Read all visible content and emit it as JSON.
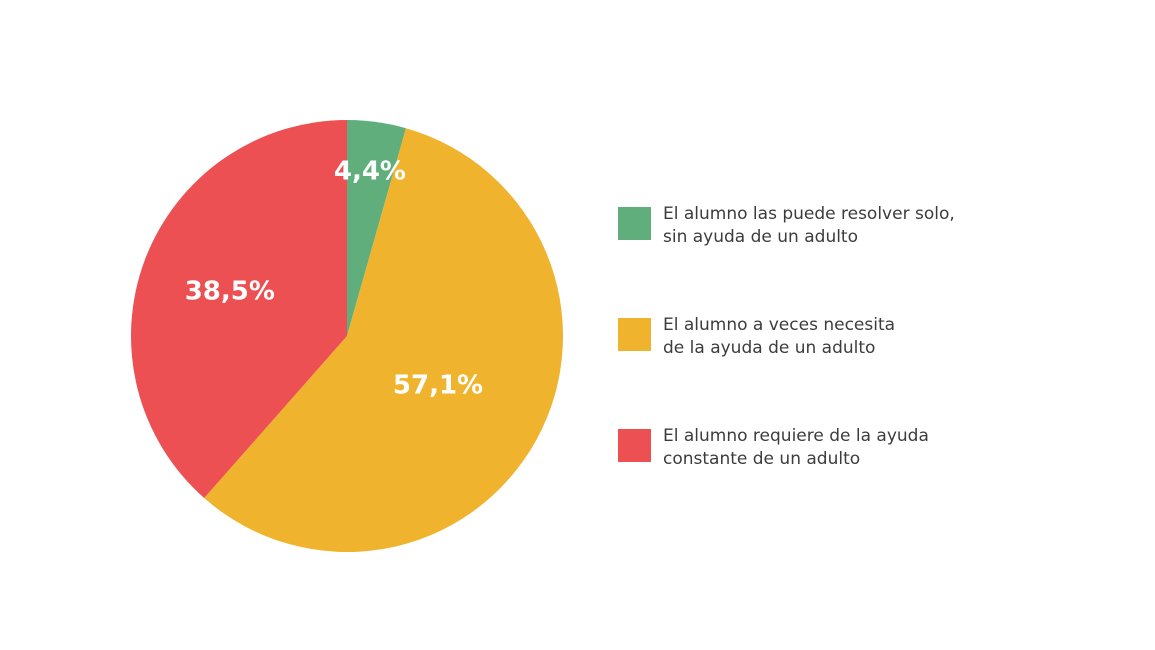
{
  "chart_data": {
    "type": "pie",
    "slices": [
      {
        "label": "El alumno las puede resolver solo,\nsin ayuda de un adulto",
        "value": 4.4,
        "value_label": "4,4%",
        "color": "#5fae7c"
      },
      {
        "label": "El alumno a veces necesita\nde la ayuda de un adulto",
        "value": 57.1,
        "value_label": "57,1%",
        "color": "#f0b32d"
      },
      {
        "label": "El alumno requiere de la ayuda\nconstante de un adulto",
        "value": 38.5,
        "value_label": "38,5%",
        "color": "#ec5052"
      }
    ],
    "start": "top",
    "direction": "clockwise",
    "legend": "right",
    "grid": false
  }
}
